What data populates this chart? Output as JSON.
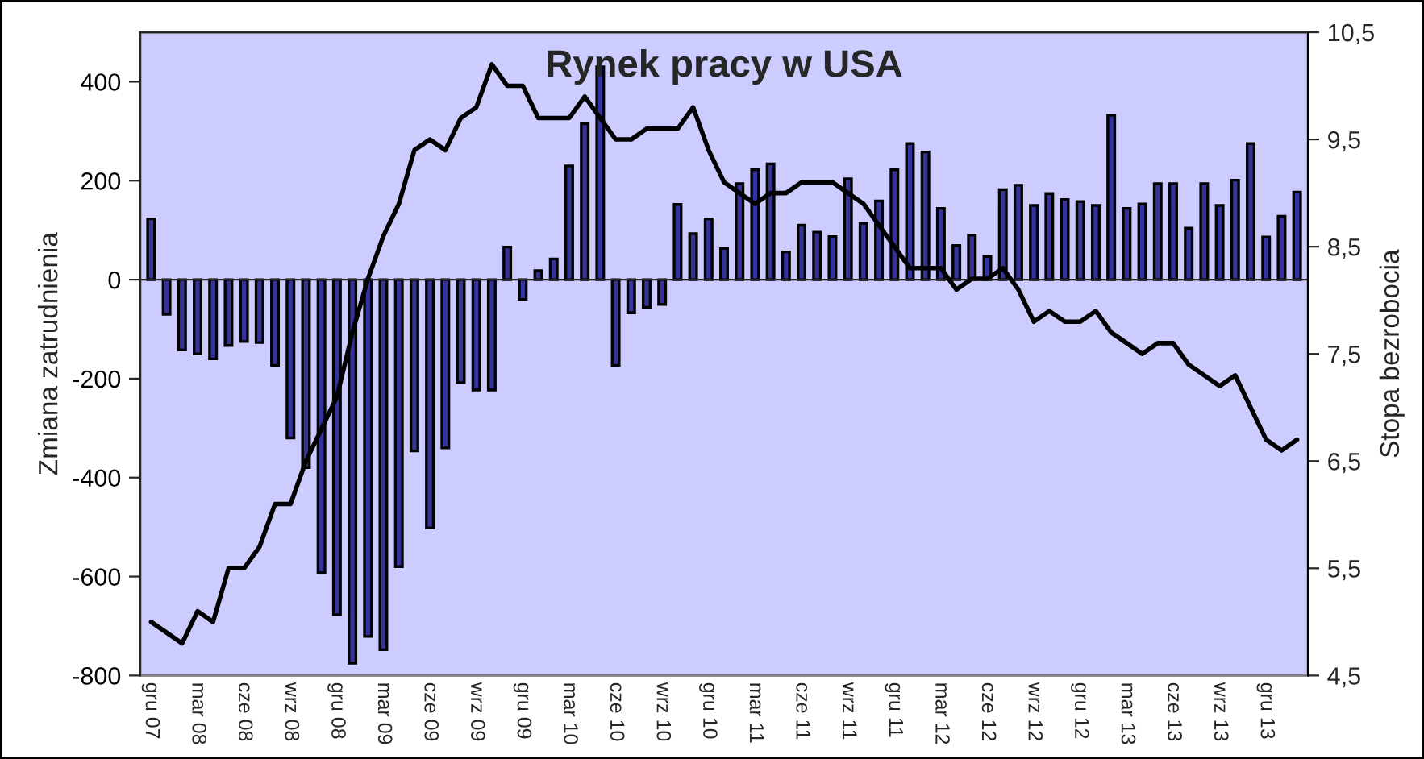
{
  "chart_data": {
    "type": "bar",
    "title": "Rynek pracy w USA",
    "ylabel": "Zmiana zatrudnienia",
    "y2label": "Stopa bezrobocia",
    "categories": [
      "gru 07",
      null,
      null,
      "mar 08",
      null,
      null,
      "cze 08",
      null,
      null,
      "wrz 08",
      null,
      null,
      "gru 08",
      null,
      null,
      "mar 09",
      null,
      null,
      "cze 09",
      null,
      null,
      "wrz 09",
      null,
      null,
      "gru 09",
      null,
      null,
      "mar 10",
      null,
      null,
      "cze 10",
      null,
      null,
      "wrz 10",
      null,
      null,
      "gru 10",
      null,
      null,
      "mar 11",
      null,
      null,
      "cze 11",
      null,
      null,
      "wrz 11",
      null,
      null,
      "gru 11",
      null,
      null,
      "mar 12",
      null,
      null,
      "cze 12",
      null,
      null,
      "wrz 12",
      null,
      null,
      "gru 12",
      null,
      null,
      "mar 13",
      null,
      null,
      "cze 13",
      null,
      null,
      "wrz 13",
      null,
      null,
      "gru 13",
      null,
      null
    ],
    "series": [
      {
        "color": "#333399",
        "values": [
          123,
          -70,
          -142,
          -150,
          -160,
          -133,
          -125,
          -127,
          -173,
          -320,
          -380,
          -592,
          -677,
          -775,
          -721,
          -748,
          -580,
          -346,
          -502,
          -340,
          -208,
          -223,
          -223,
          66,
          -40,
          18,
          42,
          230,
          315,
          430,
          -173,
          -67,
          -56,
          -50,
          152,
          93,
          123,
          63,
          194,
          222,
          234,
          56,
          110,
          96,
          87,
          204,
          114,
          159,
          222,
          275,
          258,
          144,
          69,
          90,
          47,
          182,
          191,
          150,
          174,
          162,
          158,
          150,
          332,
          144,
          153,
          194,
          194,
          104,
          194,
          150,
          201,
          275,
          86,
          128,
          177
        ]
      },
      {
        "type": "line",
        "axis": "y2",
        "color": "#000000",
        "values": [
          5.0,
          4.9,
          4.8,
          5.1,
          5.0,
          5.5,
          5.5,
          5.7,
          6.1,
          6.1,
          6.5,
          6.8,
          7.1,
          7.7,
          8.2,
          8.6,
          8.9,
          9.4,
          9.5,
          9.4,
          9.7,
          9.8,
          10.2,
          10.0,
          10.0,
          9.7,
          9.7,
          9.7,
          9.9,
          9.7,
          9.5,
          9.5,
          9.6,
          9.6,
          9.6,
          9.8,
          9.4,
          9.1,
          9.0,
          8.9,
          9.0,
          9.0,
          9.1,
          9.1,
          9.1,
          9.0,
          8.9,
          8.7,
          8.5,
          8.3,
          8.3,
          8.3,
          8.1,
          8.2,
          8.2,
          8.3,
          8.1,
          7.8,
          7.9,
          7.8,
          7.8,
          7.9,
          7.7,
          7.6,
          7.5,
          7.6,
          7.6,
          7.4,
          7.3,
          7.2,
          7.3,
          7.0,
          6.7,
          6.6,
          6.7
        ]
      }
    ],
    "ylim": [
      -800,
      500
    ],
    "yticks": [
      -800,
      -600,
      -400,
      -200,
      0,
      200,
      400
    ],
    "y2lim": [
      4.5,
      10.5
    ],
    "y2ticks": [
      {
        "value": 4.5,
        "label": "4,5"
      },
      {
        "value": 5.5,
        "label": "5,5"
      },
      {
        "value": 6.5,
        "label": "6,5"
      },
      {
        "value": 7.5,
        "label": "7,5"
      },
      {
        "value": 8.5,
        "label": "8,5"
      },
      {
        "value": 9.5,
        "label": "9,5"
      },
      {
        "value": 10.5,
        "label": "10,5"
      }
    ],
    "legend": false,
    "line_style": "solid",
    "marker": "none"
  }
}
